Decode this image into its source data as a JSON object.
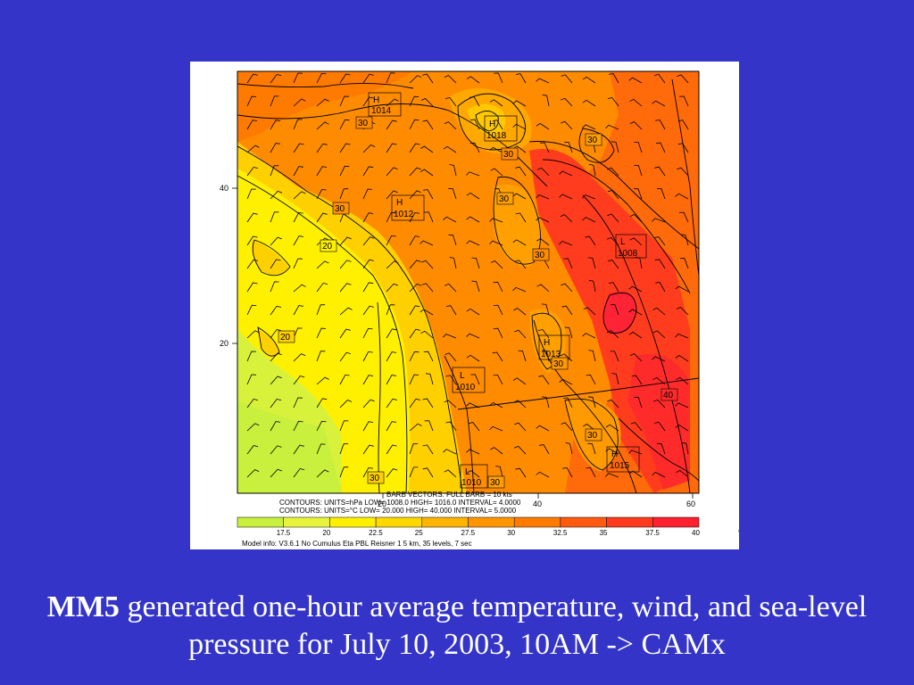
{
  "map": {
    "axis_left_labels": [
      "40",
      "20"
    ],
    "axis_bottom_labels": [
      "20",
      "40",
      "60"
    ],
    "pressure_centers": [
      {
        "kind": "H",
        "value": "1014"
      },
      {
        "kind": "H",
        "value": "1018"
      },
      {
        "kind": "H",
        "value": "1012"
      },
      {
        "kind": "L",
        "value": "1008"
      },
      {
        "kind": "H",
        "value": "1013"
      },
      {
        "kind": "L",
        "value": "1010"
      },
      {
        "kind": "H",
        "value": "1015"
      },
      {
        "kind": "L",
        "value": "1010"
      }
    ],
    "temp_labels": [
      "30",
      "30",
      "30",
      "30",
      "30",
      "30",
      "30",
      "30",
      "20",
      "20",
      "40",
      "30",
      "30"
    ],
    "info_lines": [
      "BARB VECTORS:  FULL BARB = 10 kts",
      "CONTOURS:   UNITS=hPa    LOW=    1008.0        HIGH=    1016.0       INTERVAL=      4.0000",
      "CONTOURS:   UNITS=°C    LOW=    20.000        HIGH=    40.000       INTERVAL=      5.0000"
    ],
    "colorbar": {
      "colors": [
        "#c8f03c",
        "#e8f43c",
        "#fff000",
        "#ffd800",
        "#ffb400",
        "#ff9600",
        "#ff7a00",
        "#ff5a10",
        "#ff3a1e",
        "#ff2030"
      ],
      "tick_labels": [
        "17.5",
        "20",
        "22.5",
        "25",
        "27.5",
        "30",
        "32.5",
        "35",
        "37.5",
        "40",
        "°C"
      ]
    },
    "model_info": "Model info: V3.6.1 No Cumulus Eta PBL     Reisner 1       5 km,   35 levels,      7 sec"
  },
  "caption": {
    "bold": "MM5",
    "text": " generated one-hour average temperature, wind, and sea-level pressure for July 10, 2003, 10AM -> CAMx"
  }
}
